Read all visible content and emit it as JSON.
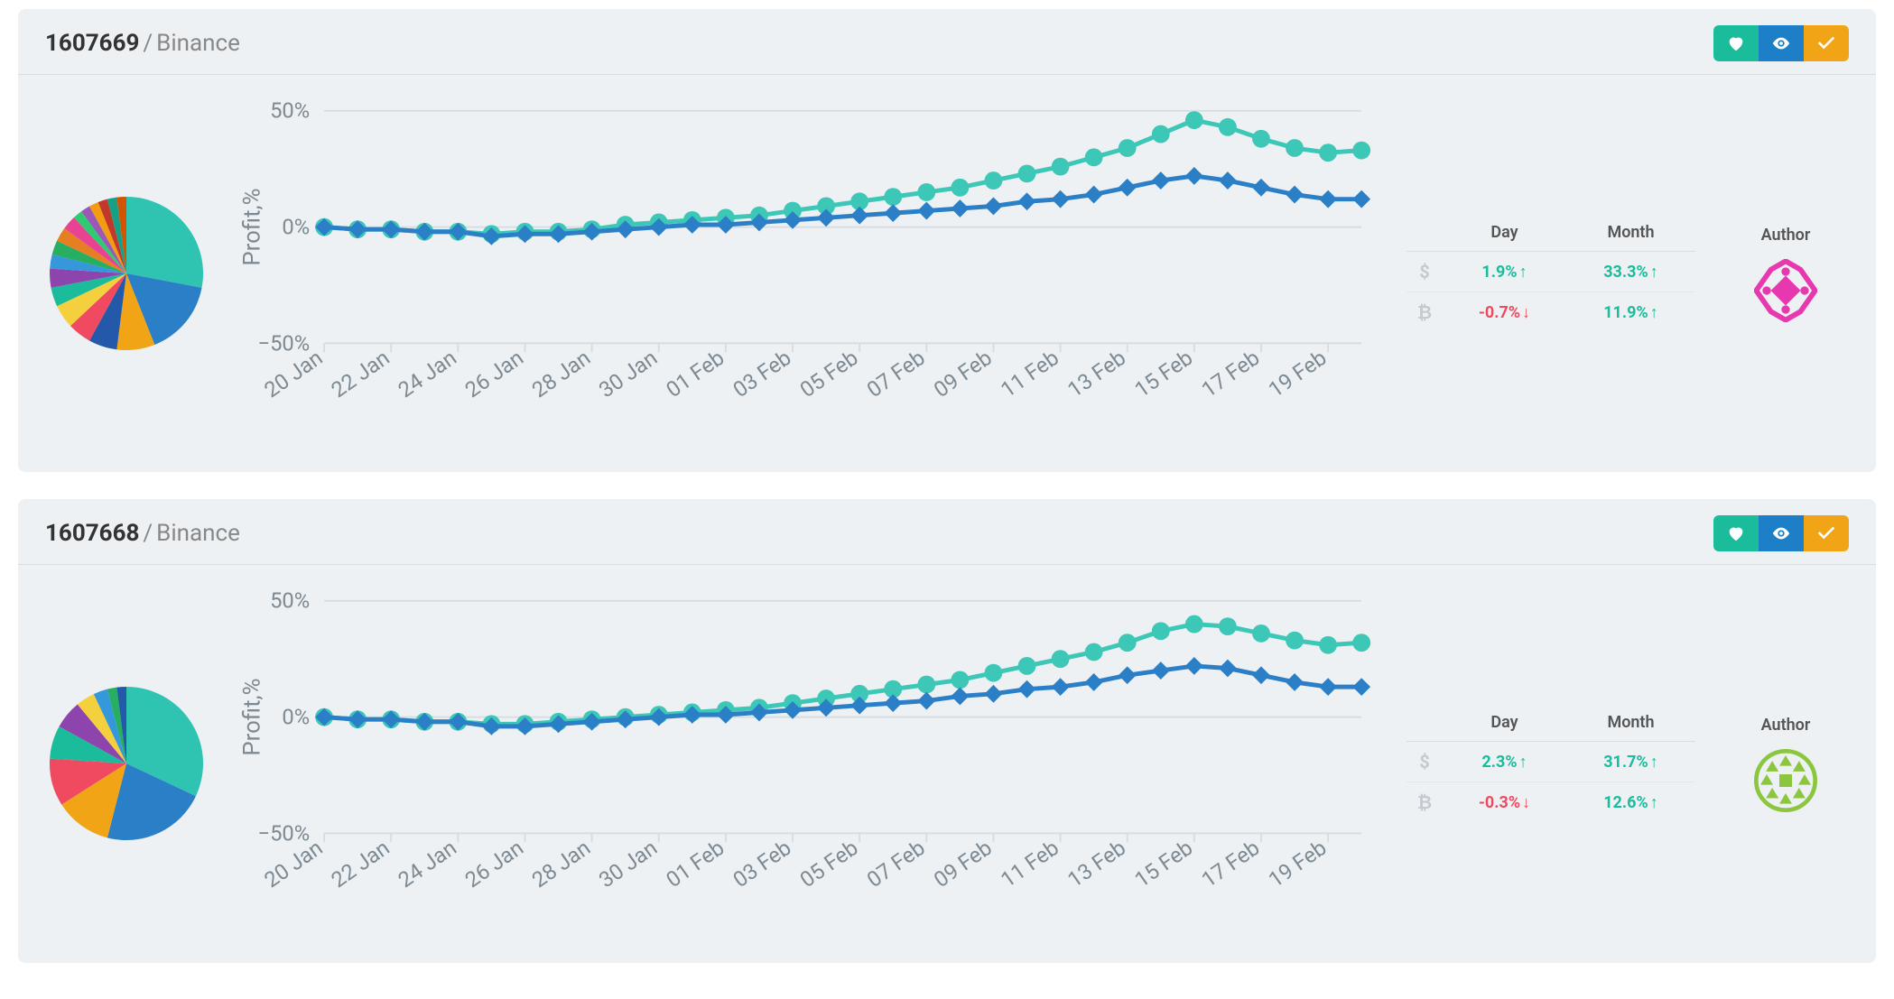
{
  "cards": [
    {
      "id": "1607669",
      "exchange": "Binance",
      "actions": {
        "heart_color": "#1abc9c",
        "eye_color": "#1e7fc9",
        "check_color": "#f0a416"
      },
      "pie": {
        "type": "pie",
        "slices": [
          {
            "value": 28,
            "color": "#2fc4b2"
          },
          {
            "value": 16,
            "color": "#2b7fc7"
          },
          {
            "value": 8,
            "color": "#f0a416"
          },
          {
            "value": 6,
            "color": "#2359a8"
          },
          {
            "value": 5,
            "color": "#ef4a5f"
          },
          {
            "value": 5,
            "color": "#f4d03f"
          },
          {
            "value": 4,
            "color": "#1abc9c"
          },
          {
            "value": 4,
            "color": "#8e44ad"
          },
          {
            "value": 3,
            "color": "#3498db"
          },
          {
            "value": 3,
            "color": "#27ae60"
          },
          {
            "value": 3,
            "color": "#e67e22"
          },
          {
            "value": 3,
            "color": "#e84393"
          },
          {
            "value": 2,
            "color": "#2ecc71"
          },
          {
            "value": 2,
            "color": "#9b59b6"
          },
          {
            "value": 2,
            "color": "#f39c12"
          },
          {
            "value": 2,
            "color": "#c0392b"
          },
          {
            "value": 2,
            "color": "#16a085"
          },
          {
            "value": 2,
            "color": "#d35400"
          }
        ]
      },
      "line_chart": {
        "type": "line",
        "ylabel": "Profit,%",
        "ylim": [
          -50,
          50
        ],
        "ytick_step": 50,
        "xlabels": [
          "20 Jan",
          "22 Jan",
          "24 Jan",
          "26 Jan",
          "28 Jan",
          "30 Jan",
          "01 Feb",
          "03 Feb",
          "05 Feb",
          "07 Feb",
          "09 Feb",
          "11 Feb",
          "13 Feb",
          "15 Feb",
          "17 Feb",
          "19 Feb"
        ],
        "series": [
          {
            "name": "usd",
            "color": "#3cc7b7",
            "marker": "circle",
            "marker_size": 5,
            "line_width": 2.5,
            "values": [
              0,
              -1,
              -1,
              -2,
              -2,
              -3,
              -2,
              -2,
              -1,
              1,
              2,
              3,
              4,
              5,
              7,
              9,
              11,
              13,
              15,
              17,
              20,
              23,
              26,
              30,
              34,
              40,
              46,
              43,
              38,
              34,
              32,
              33
            ]
          },
          {
            "name": "btc",
            "color": "#2b7fc7",
            "marker": "diamond",
            "marker_size": 5,
            "line_width": 2.5,
            "values": [
              0,
              -1,
              -1,
              -2,
              -2,
              -4,
              -3,
              -3,
              -2,
              -1,
              0,
              1,
              1,
              2,
              3,
              4,
              5,
              6,
              7,
              8,
              9,
              11,
              12,
              14,
              17,
              20,
              22,
              20,
              17,
              14,
              12,
              12
            ]
          }
        ],
        "grid_color": "#d8dde1",
        "label_color": "#7e8a93",
        "label_fontsize": 12
      },
      "stats": {
        "headers": {
          "day": "Day",
          "month": "Month"
        },
        "rows": [
          {
            "icon": "$",
            "day": {
              "text": "1.9%",
              "dir": "up"
            },
            "month": {
              "text": "33.3%",
              "dir": "up"
            }
          },
          {
            "icon": "₿",
            "day": {
              "text": "-0.7%",
              "dir": "down"
            },
            "month": {
              "text": "11.9%",
              "dir": "up"
            }
          }
        ]
      },
      "author": {
        "label": "Author",
        "avatar_colors": {
          "primary": "#e838b0",
          "secondary": "#ffffff"
        },
        "avatar_style": "geometric-a"
      }
    },
    {
      "id": "1607668",
      "exchange": "Binance",
      "actions": {
        "heart_color": "#1abc9c",
        "eye_color": "#1e7fc9",
        "check_color": "#f0a416"
      },
      "pie": {
        "type": "pie",
        "slices": [
          {
            "value": 32,
            "color": "#2fc4b2"
          },
          {
            "value": 22,
            "color": "#2b7fc7"
          },
          {
            "value": 12,
            "color": "#f0a416"
          },
          {
            "value": 10,
            "color": "#ef4a5f"
          },
          {
            "value": 7,
            "color": "#1abc9c"
          },
          {
            "value": 6,
            "color": "#8e44ad"
          },
          {
            "value": 4,
            "color": "#f4d03f"
          },
          {
            "value": 3,
            "color": "#3498db"
          },
          {
            "value": 2,
            "color": "#27ae60"
          },
          {
            "value": 2,
            "color": "#2359a8"
          }
        ]
      },
      "line_chart": {
        "type": "line",
        "ylabel": "Profit,%",
        "ylim": [
          -50,
          50
        ],
        "ytick_step": 50,
        "xlabels": [
          "20 Jan",
          "22 Jan",
          "24 Jan",
          "26 Jan",
          "28 Jan",
          "30 Jan",
          "01 Feb",
          "03 Feb",
          "05 Feb",
          "07 Feb",
          "09 Feb",
          "11 Feb",
          "13 Feb",
          "15 Feb",
          "17 Feb",
          "19 Feb"
        ],
        "series": [
          {
            "name": "usd",
            "color": "#3cc7b7",
            "marker": "circle",
            "marker_size": 5,
            "line_width": 2.5,
            "values": [
              0,
              -1,
              -1,
              -2,
              -2,
              -3,
              -3,
              -2,
              -1,
              0,
              1,
              2,
              3,
              4,
              6,
              8,
              10,
              12,
              14,
              16,
              19,
              22,
              25,
              28,
              32,
              37,
              40,
              39,
              36,
              33,
              31,
              32
            ]
          },
          {
            "name": "btc",
            "color": "#2b7fc7",
            "marker": "diamond",
            "marker_size": 5,
            "line_width": 2.5,
            "values": [
              0,
              -1,
              -1,
              -2,
              -2,
              -4,
              -4,
              -3,
              -2,
              -1,
              0,
              1,
              1,
              2,
              3,
              4,
              5,
              6,
              7,
              9,
              10,
              12,
              13,
              15,
              18,
              20,
              22,
              21,
              18,
              15,
              13,
              13
            ]
          }
        ],
        "grid_color": "#d8dde1",
        "label_color": "#7e8a93",
        "label_fontsize": 12
      },
      "stats": {
        "headers": {
          "day": "Day",
          "month": "Month"
        },
        "rows": [
          {
            "icon": "$",
            "day": {
              "text": "2.3%",
              "dir": "up"
            },
            "month": {
              "text": "31.7%",
              "dir": "up"
            }
          },
          {
            "icon": "₿",
            "day": {
              "text": "-0.3%",
              "dir": "down"
            },
            "month": {
              "text": "12.6%",
              "dir": "up"
            }
          }
        ]
      },
      "author": {
        "label": "Author",
        "avatar_colors": {
          "primary": "#8cc63f",
          "secondary": "#ffffff"
        },
        "avatar_style": "geometric-b"
      }
    }
  ],
  "colors": {
    "card_bg": "#edf1f4",
    "border": "#d8dde1",
    "text_primary": "#333333",
    "text_muted": "#7e8a93",
    "up": "#1abc9c",
    "down": "#ef4a5f"
  }
}
